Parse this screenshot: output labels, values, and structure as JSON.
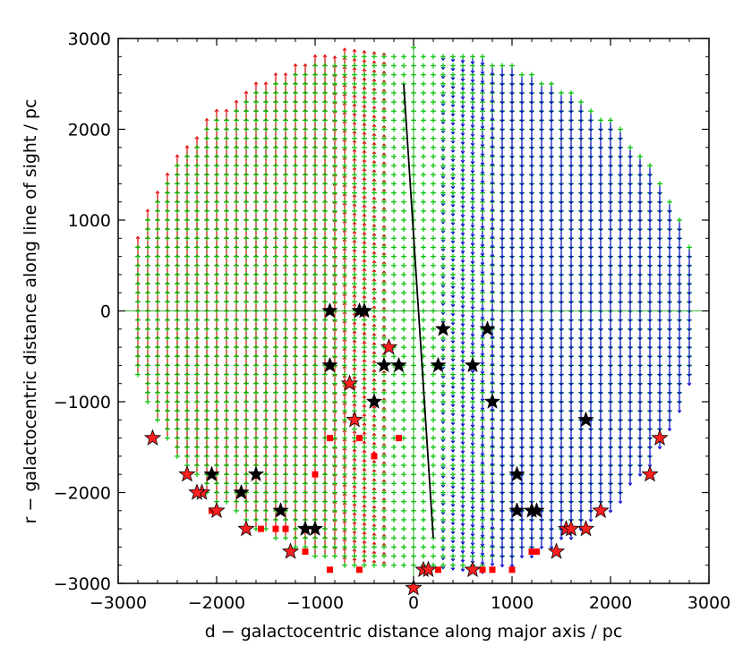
{
  "chart_data": {
    "type": "scatter",
    "title": "",
    "xlabel": "d − galactocentric distance along major axis / pc",
    "ylabel": "r − galactocentric distance along line of sight / pc",
    "xlim": [
      -3000,
      3000
    ],
    "ylim": [
      -3000,
      3000
    ],
    "x_ticks": [
      -3000,
      -2000,
      -1000,
      0,
      1000,
      2000,
      3000
    ],
    "y_ticks": [
      -3000,
      -2000,
      -1000,
      0,
      1000,
      2000,
      3000
    ],
    "x_tick_labels": [
      "−3000",
      "−2000",
      "−1000",
      "0",
      "1000",
      "2000",
      "3000"
    ],
    "y_tick_labels": [
      "−3000",
      "−2000",
      "−1000",
      "0",
      "1000",
      "2000",
      "3000"
    ],
    "grid": false,
    "colors": {
      "approaching_arrow": "#e00000",
      "receding_arrow": "#0000cc",
      "grid_cross": "#00c000",
      "black_star": "#000000",
      "red_star": "#ff2020",
      "red_square": "#ff0000",
      "line": "#000000",
      "zero_axis": "#00a000"
    },
    "velocity_field": {
      "description_free": true,
      "grid_step_x": 100,
      "grid_step_y": 100,
      "radius": 2900
    },
    "black_line": [
      [
        -100,
        2500
      ],
      [
        200,
        -2500
      ]
    ],
    "black_stars": [
      [
        -850,
        0
      ],
      [
        -550,
        0
      ],
      [
        -500,
        0
      ],
      [
        -850,
        -600
      ],
      [
        -300,
        -600
      ],
      [
        -150,
        -600
      ],
      [
        -400,
        -1000
      ],
      [
        300,
        -200
      ],
      [
        750,
        -200
      ],
      [
        250,
        -600
      ],
      [
        600,
        -600
      ],
      [
        800,
        -1000
      ],
      [
        1750,
        -1200
      ],
      [
        1050,
        -1800
      ],
      [
        -2050,
        -1800
      ],
      [
        -1600,
        -1800
      ],
      [
        -1750,
        -2000
      ],
      [
        -2200,
        -2000
      ],
      [
        1050,
        -2200
      ],
      [
        1200,
        -2200
      ],
      [
        1250,
        -2200
      ],
      [
        -1350,
        -2200
      ],
      [
        -1000,
        -2400
      ],
      [
        -1100,
        -2400
      ],
      [
        -1250,
        -2650
      ]
    ],
    "red_stars": [
      [
        -2650,
        -1400
      ],
      [
        2500,
        -1400
      ],
      [
        -2300,
        -1800
      ],
      [
        2400,
        -1800
      ],
      [
        -2150,
        -2000
      ],
      [
        -2200,
        -2000
      ],
      [
        -2000,
        -2200
      ],
      [
        1900,
        -2200
      ],
      [
        -1700,
        -2400
      ],
      [
        1550,
        -2400
      ],
      [
        1600,
        -2400
      ],
      [
        1750,
        -2400
      ],
      [
        1450,
        -2650
      ],
      [
        -1250,
        -2650
      ],
      [
        -250,
        -400
      ],
      [
        -650,
        -800
      ],
      [
        -600,
        -1200
      ],
      [
        100,
        -2850
      ],
      [
        150,
        -2850
      ],
      [
        600,
        -2850
      ],
      [
        0,
        -3050
      ]
    ],
    "red_squares": [
      [
        -850,
        -1400
      ],
      [
        -550,
        -1400
      ],
      [
        -150,
        -1400
      ],
      [
        -1000,
        -1800
      ],
      [
        -400,
        -1600
      ],
      [
        -2050,
        -2200
      ],
      [
        -1550,
        -2400
      ],
      [
        -1300,
        -2400
      ],
      [
        -1400,
        -2400
      ],
      [
        -1100,
        -2650
      ],
      [
        -850,
        -2850
      ],
      [
        -550,
        -2850
      ],
      [
        250,
        -2850
      ],
      [
        700,
        -2850
      ],
      [
        800,
        -2850
      ],
      [
        1000,
        -2850
      ],
      [
        1200,
        -2650
      ],
      [
        1250,
        -2650
      ]
    ]
  }
}
